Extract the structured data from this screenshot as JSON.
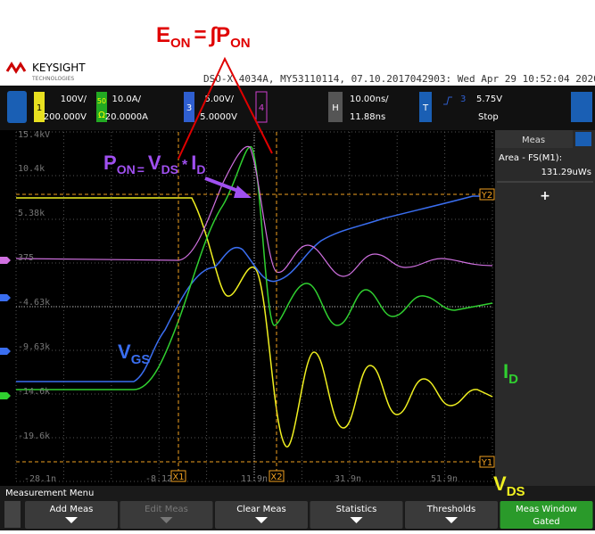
{
  "annotations": {
    "energy": {
      "symbol": "E",
      "sub": "ON",
      "eq": "=",
      "integral": "∫P",
      "integral_sub": "ON"
    },
    "power": {
      "symbol": "P",
      "sub": "ON",
      "eq": "=",
      "v": "V",
      "v_sub": "DS",
      "op": "*",
      "i": "I",
      "i_sub": "D"
    },
    "vgs": {
      "symbol": "V",
      "sub": "GS"
    },
    "id": {
      "symbol": "I",
      "sub": "D"
    },
    "vds": {
      "symbol": "V",
      "sub": "DS"
    }
  },
  "header": {
    "brand": "KEYSIGHT",
    "tagline": "TECHNOLOGIES",
    "info": "DSO-X 4034A, MY53110114, 07.10.2017042903: Wed Apr 29 10:52:04 2020"
  },
  "toolbar": {
    "channels": [
      {
        "number": "1",
        "scale": "100V/",
        "offset": "200.000V"
      },
      {
        "impedance": "50",
        "coupling": "Ω",
        "scale": "10.0A/",
        "offset": "20.0000A"
      },
      {
        "number": "3",
        "scale": "5.00V/",
        "offset": "5.0000V"
      },
      {
        "number": "4"
      }
    ],
    "horizontal": {
      "key": "H",
      "scale": "10.00ns/",
      "delay": "11.88ns"
    },
    "trigger": {
      "key": "T",
      "source": "3",
      "level": "5.75V",
      "status": "Stop"
    }
  },
  "screen": {
    "y_labels": [
      "15.4kV",
      "10.4k",
      "5.38k",
      "375",
      "-4.63k",
      "-9.63k",
      "-14.6k",
      "-19.6k"
    ],
    "x_labels": [
      "-28.1n",
      "-8.12",
      "11.9n",
      "31.9n",
      "51.9n"
    ],
    "cursors": {
      "x1": "X1",
      "x2": "X2",
      "y1": "Y1",
      "y2": "Y2"
    }
  },
  "meas_panel": {
    "title": "Meas",
    "measurement": "Area - FS(M1):",
    "value": "131.29uWs",
    "add": "+"
  },
  "menu": {
    "title": "Measurement Menu",
    "buttons": [
      {
        "label": "Add Meas"
      },
      {
        "label": "Edit Meas"
      },
      {
        "label": "Clear Meas"
      },
      {
        "label": "Statistics"
      },
      {
        "label": "Thresholds"
      },
      {
        "label": "Meas Window",
        "value": "Gated"
      }
    ]
  }
}
